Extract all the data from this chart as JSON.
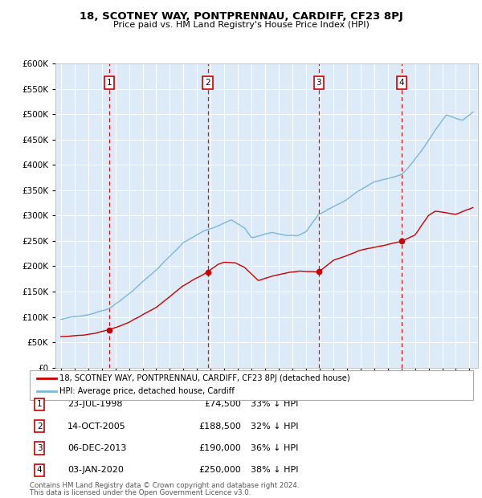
{
  "title": "18, SCOTNEY WAY, PONTPRENNAU, CARDIFF, CF23 8PJ",
  "subtitle": "Price paid vs. HM Land Registry's House Price Index (HPI)",
  "legend_line1": "18, SCOTNEY WAY, PONTPRENNAU, CARDIFF, CF23 8PJ (detached house)",
  "legend_line2": "HPI: Average price, detached house, Cardiff",
  "footer1": "Contains HM Land Registry data © Crown copyright and database right 2024.",
  "footer2": "This data is licensed under the Open Government Licence v3.0.",
  "purchases": [
    {
      "label": "1",
      "price": 74500,
      "x_approx": 1998.56
    },
    {
      "label": "2",
      "price": 188500,
      "x_approx": 2005.78
    },
    {
      "label": "3",
      "price": 190000,
      "x_approx": 2013.93
    },
    {
      "label": "4",
      "price": 250000,
      "x_approx": 2020.01
    }
  ],
  "table_rows": [
    {
      "num": "1",
      "date": "23-JUL-1998",
      "price": "£74,500",
      "pct": "33% ↓ HPI"
    },
    {
      "num": "2",
      "date": "14-OCT-2005",
      "price": "£188,500",
      "pct": "32% ↓ HPI"
    },
    {
      "num": "3",
      "date": "06-DEC-2013",
      "price": "£190,000",
      "pct": "36% ↓ HPI"
    },
    {
      "num": "4",
      "date": "03-JAN-2020",
      "price": "£250,000",
      "pct": "38% ↓ HPI"
    }
  ],
  "ylim": [
    0,
    600000
  ],
  "yticks": [
    0,
    50000,
    100000,
    150000,
    200000,
    250000,
    300000,
    350000,
    400000,
    450000,
    500000,
    550000,
    600000
  ],
  "xlim_start": 1994.6,
  "xlim_end": 2025.6,
  "hpi_color": "#7ab8d9",
  "price_color": "#cc0000",
  "plot_bg": "#ddeaf7",
  "grid_color": "#ffffff",
  "dashed_color": "#cc0000"
}
